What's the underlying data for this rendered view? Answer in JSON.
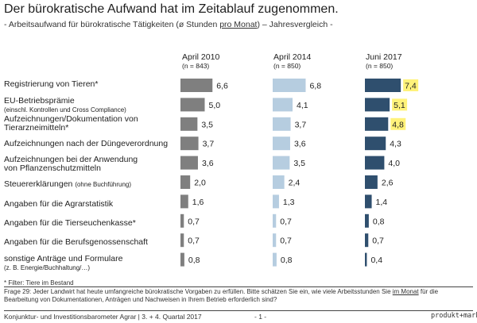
{
  "title": "Der bürokratische Aufwand hat im Zeitablauf zugenommen.",
  "subtitle": {
    "before": "- Arbeitsaufwand für bürokratische Tätigkeiten (ø Stunden ",
    "underlined": "pro Monat",
    "after": ") – Jahresvergleich -"
  },
  "footnote": "* Filter: Tiere im Bestand",
  "question": {
    "before": "Frage 29: Jeder Landwirt hat heute umfangreiche bürokratische Vorgaben zu erfüllen. Bitte schätzen Sie ein, wie viele Arbeitsstunden Sie ",
    "underlined": "im Monat",
    "after": " für die Bearbeitung von Dokumentationen, Anträgen und Nachweisen in Ihrem Betrieb erforderlich sind?"
  },
  "source": "Konjunktur- und Investitionsbarometer Agrar | 3. + 4. Quartal 2017",
  "page_number": "- 1 -",
  "brand": "produkt+markt",
  "colors": {
    "series_2010": "#7f7f7f",
    "series_2014": "#b6cde0",
    "series_2017": "#2f4f6e",
    "highlight": "#fff27a"
  },
  "chart_data": {
    "type": "bar",
    "orientation": "horizontal",
    "categories": [
      {
        "label": "Registrierung von Tieren*",
        "sub": ""
      },
      {
        "label": "EU-Betriebsprämie",
        "sub": "(einschl. Kontrollen und Cross Compliance)"
      },
      {
        "label": "Aufzeichnungen/Dokumentation von Tierarzneimitteln*",
        "sub": ""
      },
      {
        "label": "Aufzeichnungen nach der Düngeverordnung",
        "sub": ""
      },
      {
        "label": "Aufzeichnungen bei der Anwendung von Pflanzenschutzmitteln",
        "sub": ""
      },
      {
        "label": "Steuererklärungen",
        "sub": "(ohne Buchführung)"
      },
      {
        "label": "Angaben für die Agrarstatistik",
        "sub": ""
      },
      {
        "label": "Angaben für die Tierseuchenkasse*",
        "sub": ""
      },
      {
        "label": "Angaben für die Berufsgenossenschaft",
        "sub": ""
      },
      {
        "label": "sonstige Anträge und Formulare",
        "sub": "(z. B. Energie/Buchhaltung/…)"
      }
    ],
    "series": [
      {
        "name": "April 2010",
        "n": "(n = 843)",
        "values": [
          6.6,
          5.0,
          3.5,
          3.7,
          3.6,
          2.0,
          1.6,
          0.7,
          0.7,
          0.8
        ],
        "labels": [
          "6,6",
          "5,0",
          "3,5",
          "3,7",
          "3,6",
          "2,0",
          "1,6",
          "0,7",
          "0,7",
          "0,8"
        ]
      },
      {
        "name": "April 2014",
        "n": "(n = 850)",
        "values": [
          6.8,
          4.1,
          3.7,
          3.6,
          3.5,
          2.4,
          1.3,
          0.7,
          0.7,
          0.8
        ],
        "labels": [
          "6,8",
          "4,1",
          "3,7",
          "3,6",
          "3,5",
          "2,4",
          "1,3",
          "0,7",
          "0,7",
          "0,8"
        ]
      },
      {
        "name": "Juni 2017",
        "n": "(n = 850)",
        "values": [
          7.4,
          5.1,
          4.8,
          4.3,
          4.0,
          2.6,
          1.4,
          0.8,
          0.7,
          0.4
        ],
        "labels": [
          "7,4",
          "5,1",
          "4,8",
          "4,3",
          "4,0",
          "2,6",
          "1,4",
          "0,8",
          "0,7",
          "0,4"
        ],
        "highlighted": [
          true,
          true,
          true,
          false,
          false,
          false,
          false,
          false,
          false,
          false
        ]
      }
    ]
  }
}
